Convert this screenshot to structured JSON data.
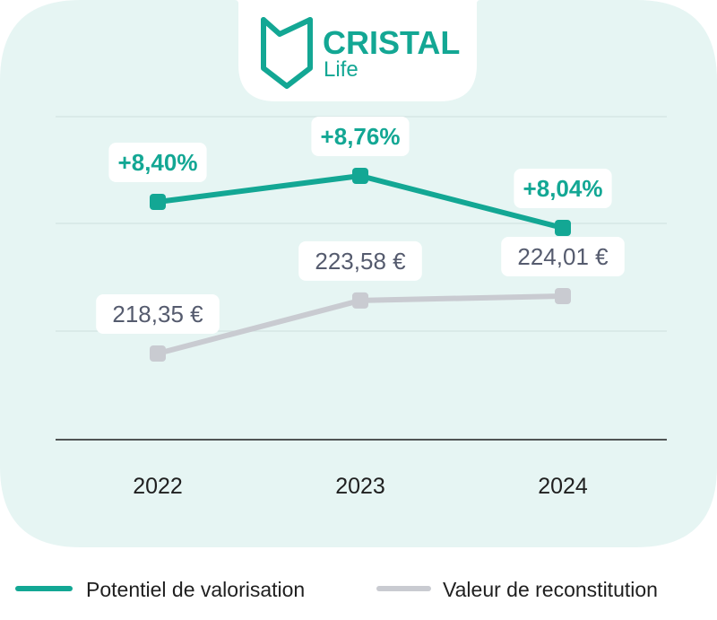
{
  "brand": {
    "name_top": "CRISTAL",
    "name_bottom": "Life",
    "color": "#13a794"
  },
  "colors": {
    "panel": "#e6f5f3",
    "teal": "#13a794",
    "gray": "#c9cbd1",
    "gray_text": "#555b6e",
    "grid": "#d3e3e1",
    "axis": "#1f1f1f"
  },
  "chart_data": {
    "type": "line",
    "categories": [
      "2022",
      "2023",
      "2024"
    ],
    "series": [
      {
        "name": "Potentiel de valorisation",
        "color": "#13a794",
        "values": [
          8.4,
          8.76,
          8.04
        ],
        "labels": [
          "+8,40%",
          "+8,76%",
          "+8,04%"
        ]
      },
      {
        "name": "Valeur de reconstitution",
        "color": "#c9cbd1",
        "values": [
          218.35,
          223.58,
          224.01
        ],
        "labels": [
          "218,35 €",
          "223,58 €",
          "224,01 €"
        ]
      }
    ],
    "grid": true,
    "legend_position": "bottom"
  }
}
